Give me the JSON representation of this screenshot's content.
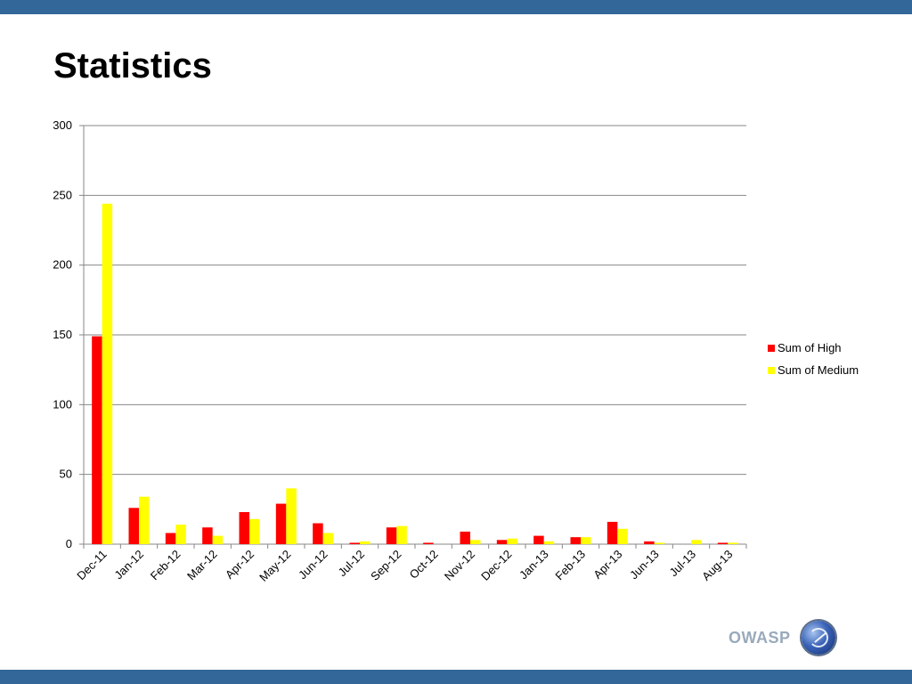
{
  "slide": {
    "title": "Statistics"
  },
  "logo": {
    "text": "OWASP"
  },
  "colors": {
    "bar_top": "#336699",
    "high": "#ff0000",
    "medium": "#ffff00",
    "grid": "#878787"
  },
  "chart_data": {
    "type": "bar",
    "title": "",
    "xlabel": "",
    "ylabel": "",
    "ylim": [
      0,
      300
    ],
    "yticks": [
      0,
      50,
      100,
      150,
      200,
      250,
      300
    ],
    "grid": true,
    "legend_position": "right",
    "categories": [
      "Dec-11",
      "Jan-12",
      "Feb-12",
      "Mar-12",
      "Apr-12",
      "May-12",
      "Jun-12",
      "Jul-12",
      "Sep-12",
      "Oct-12",
      "Nov-12",
      "Dec-12",
      "Jan-13",
      "Feb-13",
      "Apr-13",
      "Jun-13",
      "Jul-13",
      "Aug-13"
    ],
    "series": [
      {
        "name": "Sum of High",
        "color": "#ff0000",
        "values": [
          149,
          26,
          8,
          12,
          23,
          29,
          15,
          1,
          12,
          1,
          9,
          3,
          6,
          5,
          16,
          2,
          0,
          1
        ]
      },
      {
        "name": "Sum of Medium",
        "color": "#ffff00",
        "values": [
          244,
          34,
          14,
          6,
          18,
          40,
          8,
          2,
          13,
          0,
          3,
          4,
          2,
          5,
          11,
          1,
          3,
          1
        ]
      }
    ]
  }
}
